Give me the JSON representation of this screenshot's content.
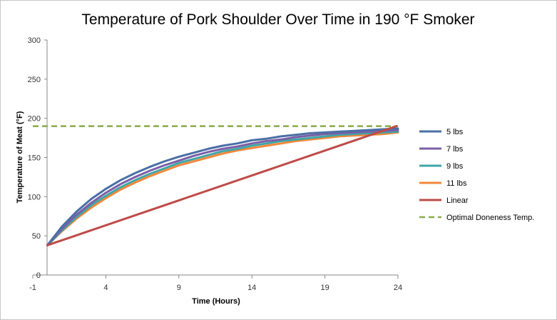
{
  "chart_data": {
    "type": "line",
    "title": "Temperature of Pork Shoulder Over Time in 190 °F Smoker",
    "xlabel": "Time (Hours)",
    "ylabel": "Temperature of Meat (°F)",
    "xlim": [
      -1,
      24
    ],
    "ylim": [
      0,
      300
    ],
    "x_ticks": [
      "-1",
      "4",
      "9",
      "14",
      "19",
      "24"
    ],
    "y_ticks": [
      "0",
      "50",
      "100",
      "150",
      "200",
      "250",
      "300"
    ],
    "grid": false,
    "legend_position": "right",
    "series": [
      {
        "name": "5 lbs",
        "color": "#4a6fa5",
        "dashed": false,
        "x": [
          0,
          1,
          2,
          3,
          4,
          5,
          6,
          7,
          8,
          9,
          10,
          11,
          12,
          13,
          14,
          15,
          16,
          17,
          18,
          19,
          20,
          21,
          22,
          23,
          24
        ],
        "y": [
          38,
          62,
          81,
          97,
          110,
          121,
          130,
          138,
          145,
          151,
          156,
          161,
          165,
          168,
          172,
          174,
          177,
          179,
          181,
          182,
          183,
          184,
          185,
          186,
          187
        ]
      },
      {
        "name": "7 lbs",
        "color": "#7b5ea7",
        "dashed": false,
        "x": [
          0,
          1,
          2,
          3,
          4,
          5,
          6,
          7,
          8,
          9,
          10,
          11,
          12,
          13,
          14,
          15,
          16,
          17,
          18,
          19,
          20,
          21,
          22,
          23,
          24
        ],
        "y": [
          38,
          59,
          77,
          92,
          105,
          116,
          125,
          133,
          140,
          146,
          152,
          157,
          161,
          164,
          168,
          171,
          173,
          176,
          178,
          180,
          181,
          182,
          183,
          184,
          185
        ]
      },
      {
        "name": "9 lbs",
        "color": "#3fa5a5",
        "dashed": false,
        "x": [
          0,
          1,
          2,
          3,
          4,
          5,
          6,
          7,
          8,
          9,
          10,
          11,
          12,
          13,
          14,
          15,
          16,
          17,
          18,
          19,
          20,
          21,
          22,
          23,
          24
        ],
        "y": [
          38,
          57,
          74,
          89,
          101,
          112,
          121,
          129,
          136,
          143,
          148,
          153,
          158,
          161,
          165,
          168,
          171,
          173,
          175,
          177,
          179,
          180,
          181,
          182,
          183
        ]
      },
      {
        "name": "11 lbs",
        "color": "#f0883a",
        "dashed": false,
        "x": [
          0,
          1,
          2,
          3,
          4,
          5,
          6,
          7,
          8,
          9,
          10,
          11,
          12,
          13,
          14,
          15,
          16,
          17,
          18,
          19,
          20,
          21,
          22,
          23,
          24
        ],
        "y": [
          38,
          56,
          72,
          86,
          98,
          109,
          118,
          126,
          133,
          140,
          145,
          150,
          155,
          159,
          162,
          165,
          168,
          171,
          173,
          175,
          177,
          178,
          179,
          180,
          182
        ]
      },
      {
        "name": "Linear",
        "color": "#be4b48",
        "dashed": false,
        "x": [
          0,
          23.9
        ],
        "y": [
          38,
          190
        ]
      },
      {
        "name": "Optimal Doneness Temp.",
        "color": "#8aaa4a",
        "dashed": true,
        "x": [
          -1,
          24
        ],
        "y": [
          190,
          190
        ]
      }
    ]
  }
}
